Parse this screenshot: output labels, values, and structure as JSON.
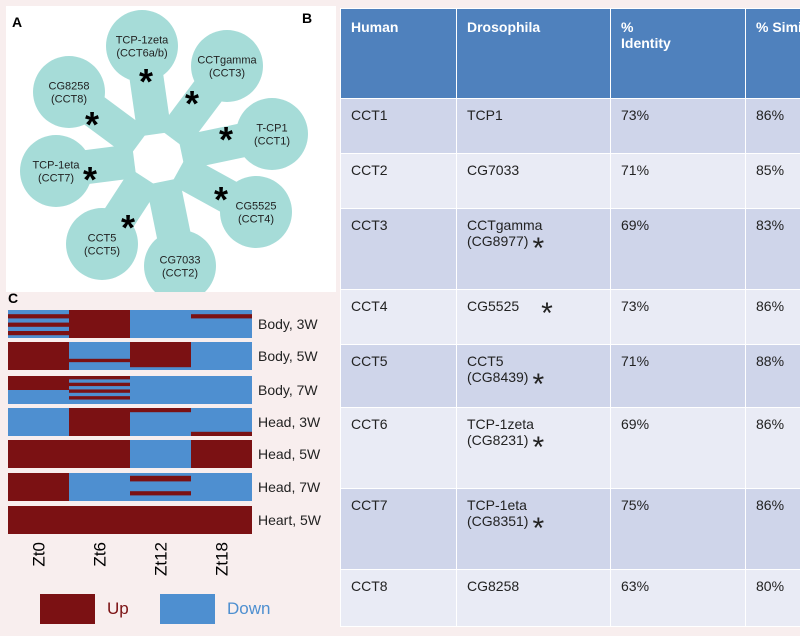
{
  "panels": {
    "a": {
      "label": "A",
      "nodes": [
        {
          "label": "TCP-1zeta\n(CCT6a/b)",
          "marker": "*"
        },
        {
          "label": "CCTgamma\n(CCT3)",
          "marker": "*"
        },
        {
          "label": "T-CP1\n(CCT1)",
          "marker": "*"
        },
        {
          "label": "CG5525\n(CCT4)",
          "marker": "*"
        },
        {
          "label": "CG7033\n(CCT2)"
        },
        {
          "label": "CCT5\n(CCT5)",
          "marker": "*"
        },
        {
          "label": "TCP-1eta\n(CCT7)",
          "marker": "*"
        },
        {
          "label": "CG8258\n(CCT8)",
          "marker": "*"
        }
      ]
    },
    "b": {
      "label": "B",
      "table": {
        "header": [
          "Human",
          "Drosophila",
          "%\nIdentity",
          "% Similarity"
        ],
        "rows": [
          {
            "human": "CCT1",
            "drosophila": "TCP1",
            "identity": "73%",
            "similarity": "86%"
          },
          {
            "human": "CCT2",
            "drosophila": "CG7033",
            "identity": "71%",
            "similarity": "85%"
          },
          {
            "human": "CCT3",
            "drosophila": "CCTgamma\n(CG8977)",
            "marker": "*",
            "identity": "69%",
            "similarity": "83%"
          },
          {
            "human": "CCT4",
            "drosophila": "CG5525",
            "marker": "*",
            "identity": "73%",
            "similarity": "86%"
          },
          {
            "human": "CCT5",
            "drosophila": "CCT5\n(CG8439)",
            "marker": "*",
            "identity": "71%",
            "similarity": "88%"
          },
          {
            "human": "CCT6",
            "drosophila": "TCP-1zeta\n(CG8231)",
            "marker": "*",
            "identity": "69%",
            "similarity": "86%"
          },
          {
            "human": "CCT7",
            "drosophila": "TCP-1eta\n(CG8351)",
            "marker": "*",
            "identity": "75%",
            "similarity": "86%"
          },
          {
            "human": "CCT8",
            "drosophila": "CG8258",
            "identity": "63%",
            "similarity": "80%"
          }
        ]
      }
    },
    "c": {
      "label": "C",
      "rows": [
        "Body, 3W",
        "Body, 5W",
        "Body, 7W",
        "Head, 3W",
        "Head, 5W",
        "Head, 7W",
        "Heart, 5W"
      ],
      "columns": [
        "Zt0",
        "Zt6",
        "Zt12",
        "Zt18"
      ],
      "legend": [
        {
          "label": "Up",
          "color": "#7b1113"
        },
        {
          "label": "Down",
          "color": "#4e8fd0"
        }
      ]
    }
  }
}
